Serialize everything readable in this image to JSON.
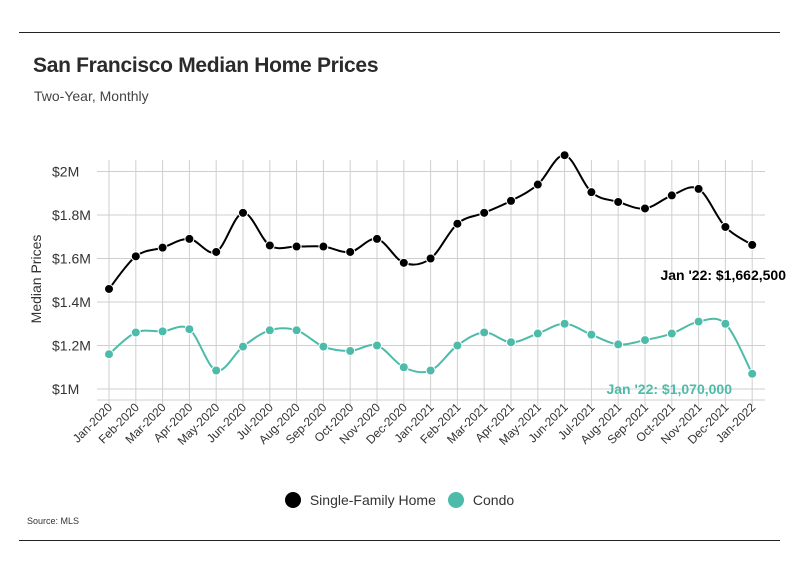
{
  "header": {
    "title": "San Francisco Median Home Prices",
    "subtitle": "Two-Year, Monthly"
  },
  "footer": {
    "source": "Source:  MLS"
  },
  "colors": {
    "single_family": "#000000",
    "condo": "#4dbba9",
    "grid": "#cfcfcf"
  },
  "chart_data": {
    "type": "line",
    "title": "San Francisco Median Home Prices",
    "subtitle": "Two-Year, Monthly",
    "xlabel": "",
    "ylabel": "Median Prices",
    "ylim": [
      1000000,
      2000000
    ],
    "yticks": [
      {
        "value": 1000000,
        "label": "$1M"
      },
      {
        "value": 1200000,
        "label": "$1.2M"
      },
      {
        "value": 1400000,
        "label": "$1.4M"
      },
      {
        "value": 1600000,
        "label": "$1.6M"
      },
      {
        "value": 1800000,
        "label": "$1.8M"
      },
      {
        "value": 2000000,
        "label": "$2M"
      }
    ],
    "grid": true,
    "legend_position": "bottom",
    "categories": [
      "Jan-2020",
      "Feb-2020",
      "Mar-2020",
      "Apr-2020",
      "May-2020",
      "Jun-2020",
      "Jul-2020",
      "Aug-2020",
      "Sep-2020",
      "Oct-2020",
      "Nov-2020",
      "Dec-2020",
      "Jan-2021",
      "Feb-2021",
      "Mar-2021",
      "Apr-2021",
      "May-2021",
      "Jun-2021",
      "Jul-2021",
      "Aug-2021",
      "Sep-2021",
      "Oct-2021",
      "Nov-2021",
      "Dec-2021",
      "Jan-2022"
    ],
    "series": [
      {
        "name": "Single-Family Home",
        "color": "#000000",
        "values": [
          1460000,
          1610000,
          1650000,
          1690000,
          1630000,
          1810000,
          1660000,
          1655000,
          1655000,
          1630000,
          1690000,
          1580000,
          1600000,
          1760000,
          1810000,
          1865000,
          1940000,
          2075000,
          1905000,
          1860000,
          1830000,
          1890000,
          1920000,
          1745000,
          1662500
        ],
        "annotation": "Jan '22: $1,662,500"
      },
      {
        "name": "Condo",
        "color": "#4dbba9",
        "values": [
          1160000,
          1260000,
          1265000,
          1275000,
          1085000,
          1195000,
          1270000,
          1270000,
          1195000,
          1175000,
          1200000,
          1100000,
          1085000,
          1200000,
          1260000,
          1215000,
          1255000,
          1300000,
          1250000,
          1205000,
          1225000,
          1255000,
          1310000,
          1300000,
          1070000
        ],
        "annotation": "Jan '22: $1,070,000"
      }
    ]
  }
}
